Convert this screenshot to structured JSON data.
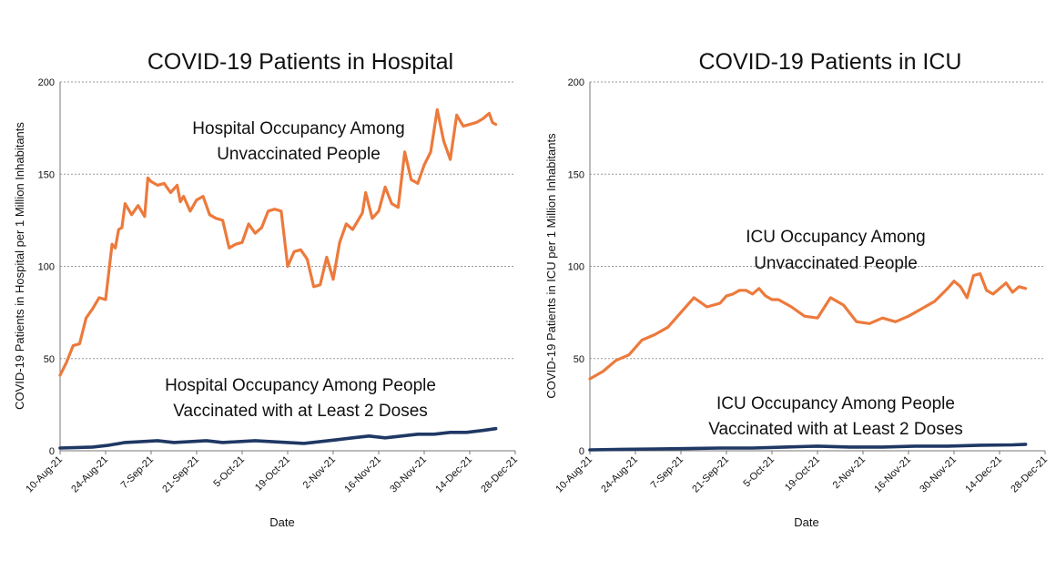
{
  "chart_data": [
    {
      "type": "line",
      "title": "COVID-19 Patients in Hospital",
      "xlabel": "Date",
      "ylabel": "COVID-19 Patients in Hospital per 1 Million Inhabitants",
      "ylim": [
        0,
        200
      ],
      "yticks": [
        "0",
        "50",
        "100",
        "150",
        "200"
      ],
      "xticks": [
        "10-Aug-21",
        "24-Aug-21",
        "7-Sep-21",
        "21-Sep-21",
        "5-Oct-21",
        "19-Oct-21",
        "2-Nov-21",
        "16-Nov-21",
        "30-Nov-21",
        "14-Dec-21",
        "28-Dec-21"
      ],
      "xlim_days": [
        0,
        140
      ],
      "grid": true,
      "annotations": [
        {
          "lines": [
            "Hospital Occupancy Among",
            "Unvaccinated People"
          ]
        },
        {
          "lines": [
            "Hospital Occupancy  Among People",
            "Vaccinated with at Least 2 Doses"
          ]
        }
      ],
      "series": [
        {
          "name": "Unvaccinated",
          "color": "#ec7a3c",
          "x": [
            0,
            2,
            4,
            6,
            8,
            10,
            12,
            14,
            16,
            17,
            18,
            19,
            20,
            22,
            24,
            26,
            27,
            28,
            30,
            32,
            34,
            36,
            37,
            38,
            40,
            42,
            44,
            46,
            48,
            50,
            52,
            54,
            56,
            58,
            60,
            62,
            64,
            66,
            68,
            70,
            72,
            74,
            76,
            78,
            80,
            82,
            84,
            86,
            88,
            90,
            92,
            93,
            94,
            96,
            98,
            100,
            102,
            104,
            106,
            108,
            110,
            112,
            114,
            116,
            118,
            120,
            122,
            124,
            126,
            128,
            130,
            132,
            133,
            134
          ],
          "values": [
            41,
            48,
            57,
            58,
            72,
            77,
            83,
            82,
            112,
            110,
            120,
            121,
            134,
            128,
            133,
            127,
            148,
            146,
            144,
            145,
            140,
            144,
            135,
            138,
            130,
            136,
            138,
            128,
            126,
            125,
            110,
            112,
            113,
            123,
            118,
            121,
            130,
            131,
            130,
            100,
            108,
            109,
            104,
            89,
            90,
            105,
            93,
            113,
            123,
            120,
            126,
            129,
            140,
            126,
            130,
            143,
            134,
            132,
            162,
            147,
            145,
            155,
            162,
            185,
            168,
            158,
            182,
            176,
            177,
            178,
            180,
            183,
            178,
            177
          ]
        },
        {
          "name": "Vaccinated with at Least 2 Doses",
          "color": "#1f3864",
          "x": [
            0,
            10,
            15,
            20,
            25,
            30,
            35,
            40,
            45,
            50,
            55,
            60,
            65,
            70,
            75,
            80,
            85,
            90,
            95,
            100,
            105,
            110,
            115,
            120,
            125,
            130,
            134
          ],
          "values": [
            1.5,
            2,
            3,
            4.5,
            5,
            5.5,
            4.5,
            5,
            5.5,
            4.5,
            5,
            5.5,
            5,
            4.5,
            4,
            5,
            6,
            7,
            8,
            7,
            8,
            9,
            9,
            10,
            10,
            11,
            12
          ]
        }
      ]
    },
    {
      "type": "line",
      "title": "COVID-19 Patients in ICU",
      "xlabel": "Date",
      "ylabel": "COVID-19 Patients in ICU  per 1 Million Inhabitants",
      "ylim": [
        0,
        200
      ],
      "yticks": [
        "0",
        "50",
        "100",
        "150",
        "200"
      ],
      "xticks": [
        "10-Aug-21",
        "24-Aug-21",
        "7-Sep-21",
        "21-Sep-21",
        "5-Oct-21",
        "19-Oct-21",
        "2-Nov-21",
        "16-Nov-21",
        "30-Nov-21",
        "14-Dec-21",
        "28-Dec-21"
      ],
      "xlim_days": [
        0,
        140
      ],
      "grid": true,
      "annotations": [
        {
          "lines": [
            "ICU Occupancy Among",
            "Unvaccinated People"
          ]
        },
        {
          "lines": [
            "ICU Occupancy Among People",
            "Vaccinated with at Least 2 Doses"
          ]
        }
      ],
      "series": [
        {
          "name": "Unvaccinated",
          "color": "#ec7a3c",
          "x": [
            0,
            4,
            8,
            12,
            16,
            20,
            24,
            28,
            32,
            36,
            40,
            42,
            44,
            46,
            48,
            50,
            52,
            54,
            56,
            58,
            62,
            66,
            70,
            74,
            78,
            82,
            86,
            90,
            94,
            98,
            102,
            106,
            110,
            112,
            114,
            116,
            118,
            120,
            122,
            124,
            126,
            128,
            130,
            132,
            134
          ],
          "values": [
            39,
            43,
            49,
            52,
            60,
            63,
            67,
            75,
            83,
            78,
            80,
            84,
            85,
            87,
            87,
            85,
            88,
            84,
            82,
            82,
            78,
            73,
            72,
            83,
            79,
            70,
            69,
            72,
            70,
            73,
            77,
            81,
            88,
            92,
            89,
            83,
            95,
            96,
            87,
            85,
            88,
            91,
            86,
            89,
            88
          ]
        },
        {
          "name": "Vaccinated with at Least 2 Doses",
          "color": "#1f3864",
          "x": [
            0,
            10,
            20,
            30,
            40,
            50,
            60,
            70,
            80,
            90,
            100,
            110,
            120,
            130,
            134
          ],
          "values": [
            0.5,
            0.8,
            1,
            1.2,
            1.5,
            1.5,
            2,
            2.5,
            2,
            2,
            2.5,
            2.5,
            3,
            3.2,
            3.5
          ]
        }
      ]
    }
  ]
}
